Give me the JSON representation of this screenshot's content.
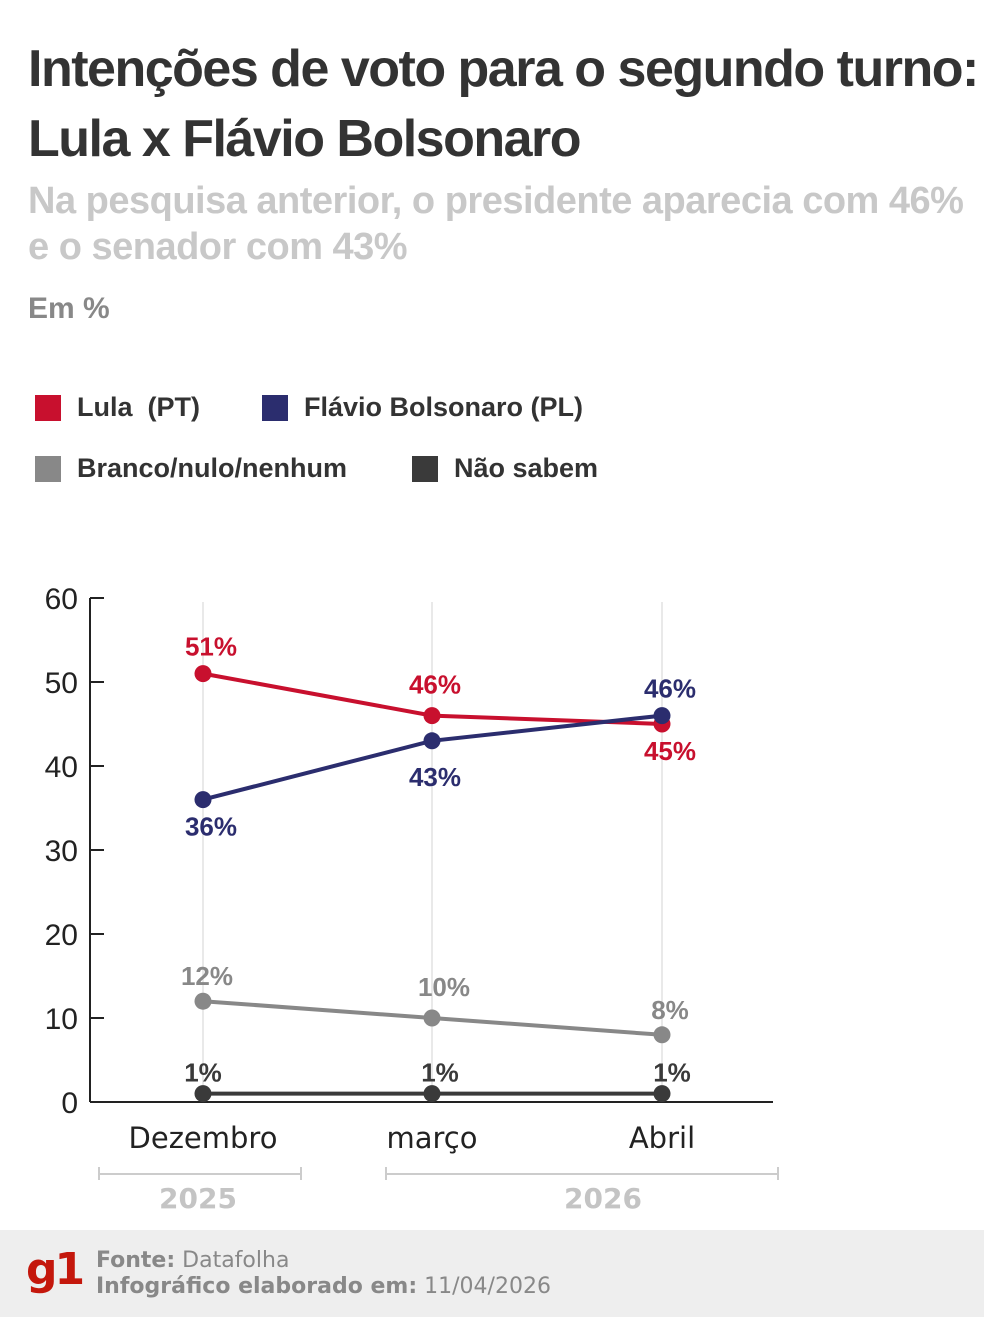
{
  "title": "Intenções de voto para o segundo turno: Lula x Flávio Bolsonaro",
  "subtitle": "Na pesquisa anterior, o presidente aparecia com 46% e o senador com 43%",
  "unit": "Em %",
  "legend": [
    {
      "label": "Lula  (PT)",
      "color": "#c8102e"
    },
    {
      "label": "Flávio Bolsonaro (PL)",
      "color": "#2b2d6e"
    },
    {
      "label": "Branco/nulo/nenhum",
      "color": "#888888"
    },
    {
      "label": "Não sabem",
      "color": "#3a3a3a"
    }
  ],
  "chart_data": {
    "type": "line",
    "categories": [
      "Dezembro",
      "março",
      "Abril"
    ],
    "year_groups": [
      {
        "label": "2025",
        "categories": [
          "Dezembro"
        ]
      },
      {
        "label": "2026",
        "categories": [
          "março",
          "Abril"
        ]
      }
    ],
    "ylim": [
      0,
      60
    ],
    "yticks": [
      0,
      10,
      20,
      30,
      40,
      50,
      60
    ],
    "grid": "vertical lines at categories",
    "legend_placement": "top",
    "series": [
      {
        "name": "Lula  (PT)",
        "color": "#c8102e",
        "values": [
          51,
          46,
          45
        ],
        "labels": [
          "51%",
          "46%",
          "45%"
        ]
      },
      {
        "name": "Flávio Bolsonaro (PL)",
        "color": "#2b2d6e",
        "values": [
          36,
          43,
          46
        ],
        "labels": [
          "36%",
          "43%",
          "46%"
        ]
      },
      {
        "name": "Branco/nulo/nenhum",
        "color": "#888888",
        "values": [
          12,
          10,
          8
        ],
        "labels": [
          "12%",
          "10%",
          "8%"
        ]
      },
      {
        "name": "Não sabem",
        "color": "#3a3a3a",
        "values": [
          1,
          1,
          1
        ],
        "labels": [
          "1%",
          "1%",
          "1%"
        ]
      }
    ]
  },
  "footer": {
    "logo": "g1",
    "source_label": "Fonte:",
    "source": "Datafolha",
    "date_label": "Infográfico elaborado em:",
    "date": "11/04/2026"
  }
}
